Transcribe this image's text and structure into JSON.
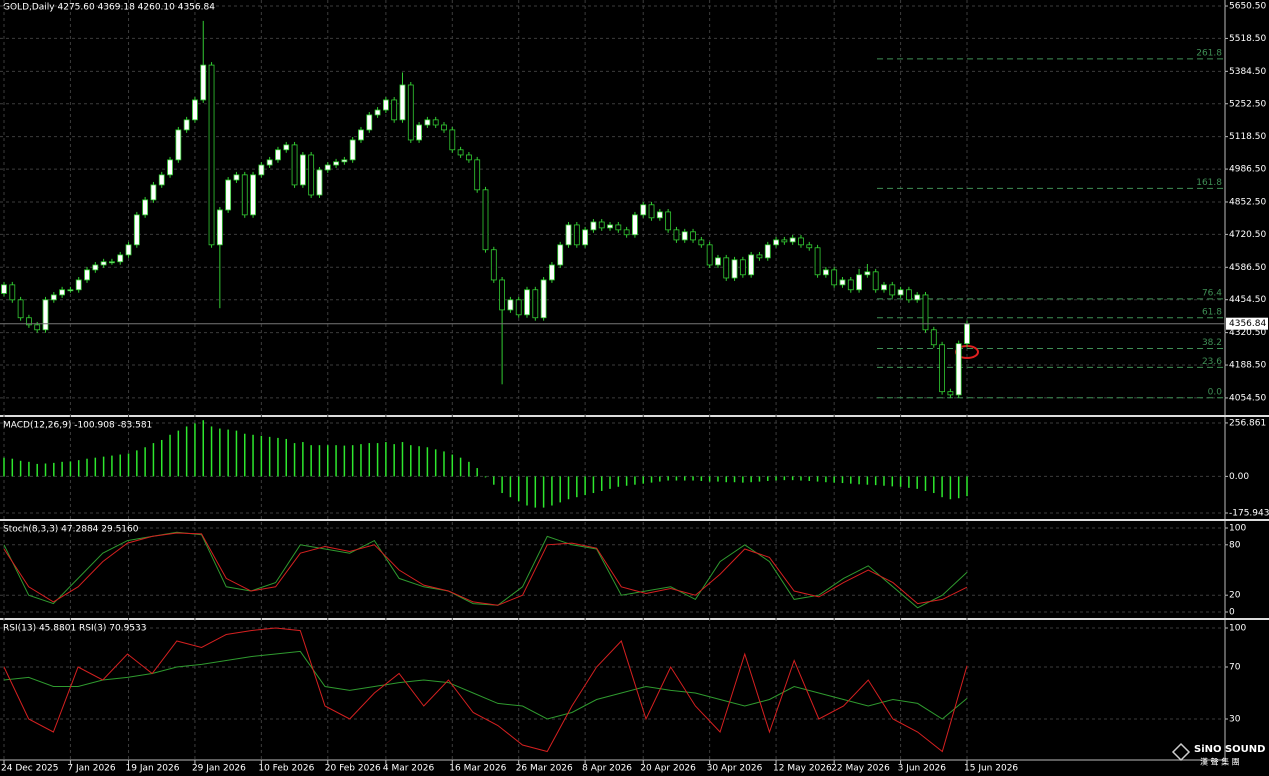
{
  "chart_data": [
    {
      "type": "candlestick",
      "title": "GOLD,Daily  4275.60 4369.18 4260.10 4356.84",
      "categories": [
        "24 Dec 2025",
        null,
        null,
        null,
        null,
        null,
        null,
        null,
        "7 Jan 2026",
        null,
        null,
        null,
        null,
        null,
        null,
        "19 Jan 2026",
        null,
        null,
        null,
        null,
        null,
        null,
        null,
        "29 Jan 2026",
        null,
        null,
        null,
        null,
        null,
        null,
        null,
        "10 Feb 2026",
        null,
        null,
        null,
        null,
        null,
        null,
        null,
        "20 Feb 2026",
        null,
        null,
        null,
        null,
        null,
        null,
        "4 Mar 2026",
        null,
        null,
        null,
        null,
        null,
        null,
        null,
        "16 Mar 2026",
        null,
        null,
        null,
        null,
        null,
        null,
        null,
        "26 Mar 2026",
        null,
        null,
        null,
        null,
        null,
        null,
        null,
        "8 Apr 2026",
        null,
        null,
        null,
        null,
        null,
        null,
        "20 Apr 2026",
        null,
        null,
        null,
        null,
        null,
        null,
        null,
        "30 Apr 2026",
        null,
        null,
        null,
        null,
        null,
        null,
        null,
        "12 May 2026",
        null,
        null,
        null,
        null,
        null,
        null,
        "22 May 2026",
        null,
        null,
        null,
        null,
        null,
        null,
        null,
        "3 Jun 2026",
        null,
        null,
        null,
        null,
        null,
        null,
        null,
        "15 Jun 2026"
      ],
      "values": [
        [
          4480,
          4527,
          4468,
          4515
        ],
        [
          4515,
          4527,
          4442,
          4454
        ],
        [
          4454,
          4466,
          4369,
          4381
        ],
        [
          4381,
          4393,
          4340,
          4352
        ],
        [
          4352,
          4364,
          4320,
          4332
        ],
        [
          4332,
          4466,
          4320,
          4454
        ],
        [
          4454,
          4486,
          4442,
          4474
        ],
        [
          4474,
          4507,
          4462,
          4495
        ],
        [
          4495,
          4507,
          4483,
          4495
        ],
        [
          4495,
          4547,
          4483,
          4535
        ],
        [
          4535,
          4588,
          4523,
          4576
        ],
        [
          4576,
          4608,
          4564,
          4596
        ],
        [
          4596,
          4621,
          4584,
          4609
        ],
        [
          4609,
          4621,
          4597,
          4609
        ],
        [
          4609,
          4649,
          4597,
          4637
        ],
        [
          4637,
          4690,
          4625,
          4678
        ],
        [
          4678,
          4812,
          4666,
          4800
        ],
        [
          4800,
          4873,
          4788,
          4861
        ],
        [
          4861,
          4934,
          4849,
          4922
        ],
        [
          4922,
          4975,
          4910,
          4963
        ],
        [
          4963,
          5036,
          4951,
          5024
        ],
        [
          5024,
          5158,
          5012,
          5146
        ],
        [
          5146,
          5199,
          5134,
          5187
        ],
        [
          5187,
          5280,
          5175,
          5268
        ],
        [
          5268,
          5590,
          5256,
          5410
        ],
        [
          5410,
          5422,
          4666,
          4678
        ],
        [
          4678,
          4832,
          4420,
          4820
        ],
        [
          4820,
          4954,
          4808,
          4942
        ],
        [
          4942,
          4975,
          4930,
          4963
        ],
        [
          4963,
          4975,
          4788,
          4800
        ],
        [
          4800,
          4975,
          4788,
          4963
        ],
        [
          4963,
          5015,
          4951,
          5003
        ],
        [
          5003,
          5036,
          4991,
          5024
        ],
        [
          5024,
          5077,
          5012,
          5065
        ],
        [
          5065,
          5097,
          5053,
          5085
        ],
        [
          5085,
          5097,
          4910,
          4922
        ],
        [
          4922,
          5056,
          4910,
          5044
        ],
        [
          5044,
          5056,
          4869,
          4881
        ],
        [
          4881,
          4995,
          4869,
          4983
        ],
        [
          4983,
          5015,
          4971,
          5003
        ],
        [
          5003,
          5028,
          4991,
          5016
        ],
        [
          5016,
          5036,
          5004,
          5024
        ],
        [
          5024,
          5117,
          5012,
          5105
        ],
        [
          5105,
          5158,
          5093,
          5146
        ],
        [
          5146,
          5219,
          5134,
          5207
        ],
        [
          5207,
          5239,
          5195,
          5227
        ],
        [
          5227,
          5280,
          5215,
          5268
        ],
        [
          5268,
          5280,
          5175,
          5187
        ],
        [
          5187,
          5380,
          5175,
          5329
        ],
        [
          5329,
          5341,
          5093,
          5105
        ],
        [
          5105,
          5178,
          5093,
          5166
        ],
        [
          5166,
          5199,
          5154,
          5187
        ],
        [
          5187,
          5199,
          5154,
          5166
        ],
        [
          5166,
          5178,
          5134,
          5146
        ],
        [
          5146,
          5158,
          5053,
          5065
        ],
        [
          5065,
          5077,
          5032,
          5044
        ],
        [
          5044,
          5056,
          5012,
          5024
        ],
        [
          5024,
          5036,
          4890,
          4902
        ],
        [
          4902,
          4914,
          4646,
          4658
        ],
        [
          4658,
          4670,
          4523,
          4535
        ],
        [
          4535,
          4547,
          4110,
          4413
        ],
        [
          4413,
          4466,
          4401,
          4454
        ],
        [
          4454,
          4466,
          4381,
          4393
        ],
        [
          4393,
          4507,
          4381,
          4495
        ],
        [
          4495,
          4507,
          4369,
          4381
        ],
        [
          4381,
          4547,
          4369,
          4535
        ],
        [
          4535,
          4608,
          4523,
          4596
        ],
        [
          4596,
          4690,
          4584,
          4678
        ],
        [
          4678,
          4771,
          4666,
          4759
        ],
        [
          4759,
          4771,
          4666,
          4678
        ],
        [
          4678,
          4751,
          4666,
          4739
        ],
        [
          4739,
          4783,
          4727,
          4771
        ],
        [
          4771,
          4783,
          4735,
          4747
        ],
        [
          4747,
          4771,
          4735,
          4759
        ],
        [
          4759,
          4771,
          4727,
          4739
        ],
        [
          4739,
          4751,
          4707,
          4719
        ],
        [
          4719,
          4812,
          4707,
          4800
        ],
        [
          4800,
          4853,
          4788,
          4841
        ],
        [
          4841,
          4853,
          4776,
          4788
        ],
        [
          4788,
          4824,
          4776,
          4812
        ],
        [
          4812,
          4824,
          4727,
          4739
        ],
        [
          4739,
          4751,
          4686,
          4698
        ],
        [
          4698,
          4743,
          4686,
          4731
        ],
        [
          4731,
          4743,
          4686,
          4698
        ],
        [
          4698,
          4710,
          4666,
          4678
        ],
        [
          4678,
          4690,
          4584,
          4596
        ],
        [
          4596,
          4637,
          4584,
          4625
        ],
        [
          4625,
          4637,
          4531,
          4543
        ],
        [
          4543,
          4629,
          4531,
          4617
        ],
        [
          4617,
          4629,
          4544,
          4556
        ],
        [
          4556,
          4649,
          4544,
          4637
        ],
        [
          4637,
          4649,
          4613,
          4625
        ],
        [
          4625,
          4690,
          4613,
          4678
        ],
        [
          4678,
          4710,
          4666,
          4698
        ],
        [
          4698,
          4710,
          4678,
          4690
        ],
        [
          4690,
          4718,
          4678,
          4706
        ],
        [
          4706,
          4718,
          4666,
          4678
        ],
        [
          4678,
          4690,
          4654,
          4666
        ],
        [
          4666,
          4678,
          4544,
          4556
        ],
        [
          4556,
          4588,
          4544,
          4576
        ],
        [
          4576,
          4588,
          4503,
          4515
        ],
        [
          4515,
          4547,
          4503,
          4535
        ],
        [
          4535,
          4547,
          4483,
          4495
        ],
        [
          4495,
          4580,
          4483,
          4556
        ],
        [
          4556,
          4600,
          4544,
          4568
        ],
        [
          4568,
          4580,
          4483,
          4495
        ],
        [
          4495,
          4527,
          4483,
          4515
        ],
        [
          4515,
          4527,
          4462,
          4474
        ],
        [
          4474,
          4507,
          4462,
          4495
        ],
        [
          4495,
          4507,
          4442,
          4454
        ],
        [
          4454,
          4486,
          4442,
          4474
        ],
        [
          4474,
          4486,
          4320,
          4332
        ],
        [
          4332,
          4344,
          4259,
          4271
        ],
        [
          4271,
          4283,
          4068,
          4080
        ],
        [
          4080,
          4092,
          4055,
          4067
        ],
        [
          4067,
          4288,
          4055,
          4275.6
        ],
        [
          4275.6,
          4369.18,
          4260.1,
          4356.84
        ]
      ],
      "up_color": "#ffffff",
      "down_color": "#000000",
      "wick_color": "#33cc33",
      "ylim": [
        3985,
        5675
      ],
      "yticks": [
        {
          "value": 5650.5,
          "label": "5650.50"
        },
        {
          "value": 5518.5,
          "label": "5518.50"
        },
        {
          "value": 5384.5,
          "label": "5384.50"
        },
        {
          "value": 5252.5,
          "label": "5252.50"
        },
        {
          "value": 5118.5,
          "label": "5118.50"
        },
        {
          "value": 4986.5,
          "label": "4986.50"
        },
        {
          "value": 4852.5,
          "label": "4852.50"
        },
        {
          "value": 4720.5,
          "label": "4720.50"
        },
        {
          "value": 4586.5,
          "label": "4586.50"
        },
        {
          "value": 4454.5,
          "label": "4454.50"
        },
        {
          "value": 4320.5,
          "label": "4320.50"
        },
        {
          "value": 4188.5,
          "label": "4188.50"
        },
        {
          "value": 4054.5,
          "label": "4054.50"
        }
      ],
      "grid": true,
      "last_price_line": true,
      "fib_color": "#3f8f55",
      "fib_levels": [
        {
          "level": 261.8,
          "price": 5435
        },
        {
          "level": 161.8,
          "price": 4908
        },
        {
          "level": 76.4,
          "price": 4458
        },
        {
          "level": 61.8,
          "price": 4381
        },
        {
          "level": 38.2,
          "price": 4256
        },
        {
          "level": 23.6,
          "price": 4179
        },
        {
          "level": {
            "value": 0,
            "label": "0.0"
          },
          "price": 4055
        }
      ]
    },
    {
      "type": "bar",
      "title": "MACD(12,26,9) -100.908 -83.581",
      "color": "#2ee82e",
      "values": [
        90,
        85,
        75,
        70,
        60,
        62,
        65,
        70,
        72,
        78,
        85,
        90,
        95,
        100,
        105,
        110,
        125,
        140,
        160,
        175,
        200,
        220,
        240,
        255,
        270,
        240,
        230,
        225,
        220,
        205,
        200,
        195,
        190,
        185,
        180,
        160,
        165,
        150,
        150,
        150,
        150,
        148,
        150,
        155,
        160,
        160,
        165,
        155,
        165,
        150,
        145,
        140,
        130,
        120,
        105,
        90,
        70,
        40,
        -5,
        -40,
        -80,
        -100,
        -120,
        -140,
        -150,
        -150,
        -140,
        -125,
        -110,
        -100,
        -90,
        -80,
        -70,
        -60,
        -50,
        -45,
        -40,
        -35,
        -30,
        -25,
        -20,
        -20,
        -20,
        -20,
        -22,
        -25,
        -25,
        -28,
        -28,
        -30,
        -28,
        -25,
        -22,
        -20,
        -18,
        -18,
        -20,
        -22,
        -25,
        -28,
        -30,
        -32,
        -35,
        -38,
        -40,
        -42,
        -45,
        -48,
        -50,
        -55,
        -60,
        -70,
        -80,
        -100,
        -110,
        -105,
        -95
      ],
      "ylim": [
        -200,
        271
      ],
      "yticks": [
        256.861,
        {
          "value": 0,
          "label": "0.00"
        },
        -175.943
      ],
      "grid": true
    },
    {
      "type": "line",
      "title": "Stoch(8,3,3) 47.2884 29.5160",
      "series": [
        {
          "color": "#2f9a2f",
          "values": [
            80,
            20,
            10,
            40,
            70,
            85,
            90,
            95,
            92,
            30,
            25,
            35,
            80,
            75,
            70,
            85,
            40,
            30,
            25,
            10,
            8,
            30,
            90,
            80,
            75,
            20,
            25,
            30,
            15,
            60,
            80,
            60,
            15,
            20,
            40,
            55,
            30,
            5,
            20,
            47.2884
          ]
        },
        {
          "color": "#d42020",
          "values": [
            75,
            30,
            12,
            30,
            60,
            82,
            90,
            94,
            93,
            40,
            25,
            30,
            70,
            78,
            72,
            80,
            50,
            32,
            25,
            12,
            8,
            20,
            80,
            82,
            76,
            30,
            22,
            28,
            20,
            45,
            75,
            65,
            25,
            18,
            35,
            50,
            35,
            10,
            15,
            29.516
          ]
        }
      ],
      "ylim": [
        0,
        100
      ],
      "yticks": [
        0,
        20,
        80,
        100
      ],
      "grid": true
    },
    {
      "type": "line",
      "title": "RSI(13) 45.8801  RSI(3) 70.9533",
      "series": [
        {
          "color": "#2f9a2f",
          "values": [
            60,
            62,
            55,
            55,
            60,
            62,
            65,
            70,
            72,
            75,
            78,
            80,
            82,
            55,
            52,
            55,
            58,
            60,
            58,
            50,
            42,
            40,
            30,
            35,
            45,
            50,
            55,
            52,
            50,
            45,
            40,
            45,
            55,
            50,
            45,
            40,
            45,
            42,
            30,
            45.8801
          ]
        },
        {
          "color": "#d42020",
          "values": [
            70,
            30,
            20,
            70,
            60,
            80,
            65,
            90,
            85,
            95,
            98,
            100,
            98,
            40,
            30,
            50,
            65,
            40,
            60,
            35,
            25,
            10,
            5,
            40,
            70,
            90,
            30,
            70,
            40,
            20,
            80,
            20,
            75,
            30,
            40,
            60,
            30,
            20,
            5,
            70.9533
          ]
        }
      ],
      "ylim": [
        0,
        100
      ],
      "yticks": [
        30,
        70,
        100
      ],
      "grid": true
    }
  ],
  "watermark": {
    "brand": "SiNO SOUND",
    "chinese": "漢 聲 集 團"
  }
}
